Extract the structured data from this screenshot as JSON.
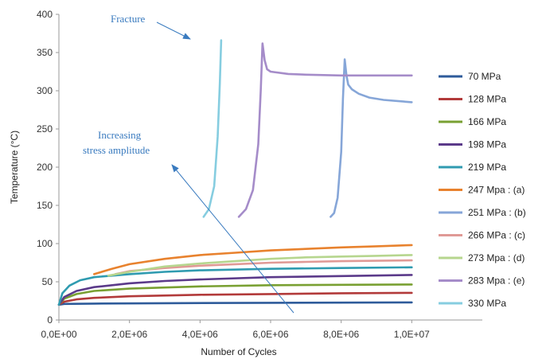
{
  "chart_data": {
    "type": "line",
    "xlabel": "Number of Cycles",
    "ylabel": "Temperature (°C)",
    "xlim": [
      0,
      12000000
    ],
    "ylim": [
      0,
      400
    ],
    "x_ticks": [
      0,
      2000000,
      4000000,
      6000000,
      8000000,
      10000000
    ],
    "x_tick_labels": [
      "0,0E+00",
      "2,0E+06",
      "4,0E+06",
      "6,0E+06",
      "8,0E+06",
      "1,0E+07"
    ],
    "y_ticks": [
      0,
      50,
      100,
      150,
      200,
      250,
      300,
      350,
      400
    ],
    "grid": false,
    "legend_position": "right",
    "annotations": [
      {
        "text": "Fracture"
      },
      {
        "text": "Increasing"
      },
      {
        "text": "stress amplitude"
      }
    ],
    "series": [
      {
        "name": "70 MPa",
        "color": "#2e5b9a",
        "points": [
          [
            0,
            20
          ],
          [
            150000,
            21
          ],
          [
            1000000,
            21.5
          ],
          [
            3000000,
            22
          ],
          [
            6000000,
            22.5
          ],
          [
            10000000,
            23
          ]
        ]
      },
      {
        "name": "128 MPa",
        "color": "#b23a3a",
        "points": [
          [
            0,
            20
          ],
          [
            150000,
            24
          ],
          [
            500000,
            27
          ],
          [
            1000000,
            29
          ],
          [
            2000000,
            31
          ],
          [
            4000000,
            33
          ],
          [
            6000000,
            34
          ],
          [
            8000000,
            35
          ],
          [
            10000000,
            35.5
          ]
        ]
      },
      {
        "name": "166 MPa",
        "color": "#79a032",
        "points": [
          [
            0,
            20
          ],
          [
            150000,
            28
          ],
          [
            500000,
            34
          ],
          [
            1000000,
            38
          ],
          [
            2000000,
            41
          ],
          [
            4000000,
            44
          ],
          [
            6000000,
            45.5
          ],
          [
            8000000,
            46
          ],
          [
            10000000,
            46.5
          ]
        ]
      },
      {
        "name": "198 MPa",
        "color": "#5b3a8a",
        "points": [
          [
            0,
            20
          ],
          [
            150000,
            30
          ],
          [
            500000,
            38
          ],
          [
            1000000,
            43
          ],
          [
            2000000,
            48
          ],
          [
            3000000,
            51
          ],
          [
            4000000,
            53
          ],
          [
            6000000,
            56
          ],
          [
            8000000,
            57.5
          ],
          [
            10000000,
            59
          ]
        ]
      },
      {
        "name": "219 MPa",
        "color": "#2f9bb0",
        "points": [
          [
            0,
            20
          ],
          [
            100000,
            35
          ],
          [
            300000,
            45
          ],
          [
            600000,
            52
          ],
          [
            1000000,
            56
          ],
          [
            2000000,
            60
          ],
          [
            3000000,
            63
          ],
          [
            4000000,
            65
          ],
          [
            6000000,
            67
          ],
          [
            8000000,
            68
          ],
          [
            10000000,
            69
          ]
        ]
      },
      {
        "name": "247 Mpa : (a)",
        "color": "#e8822e",
        "points": [
          [
            1000000,
            60
          ],
          [
            1500000,
            67
          ],
          [
            2000000,
            73
          ],
          [
            3000000,
            80
          ],
          [
            4000000,
            85
          ],
          [
            5000000,
            88
          ],
          [
            6000000,
            91
          ],
          [
            7000000,
            93
          ],
          [
            8000000,
            95
          ],
          [
            9000000,
            96.5
          ],
          [
            10000000,
            98
          ]
        ]
      },
      {
        "name": "251 MPa : (b)",
        "color": "#86a6d8",
        "points": [
          [
            7700000,
            135
          ],
          [
            7800000,
            140
          ],
          [
            7900000,
            160
          ],
          [
            8000000,
            220
          ],
          [
            8050000,
            290
          ],
          [
            8100000,
            341
          ],
          [
            8150000,
            320
          ],
          [
            8200000,
            308
          ],
          [
            8300000,
            302
          ],
          [
            8500000,
            296
          ],
          [
            8800000,
            291
          ],
          [
            9200000,
            288
          ],
          [
            10000000,
            285
          ]
        ]
      },
      {
        "name": "266 MPa : (c)",
        "color": "#e09a96",
        "points": [
          [
            1600000,
            60
          ],
          [
            2000000,
            64
          ],
          [
            3000000,
            68
          ],
          [
            4000000,
            71
          ],
          [
            5000000,
            73
          ],
          [
            6000000,
            75
          ],
          [
            7000000,
            76
          ],
          [
            8000000,
            77
          ],
          [
            9000000,
            77.5
          ],
          [
            10000000,
            78
          ]
        ]
      },
      {
        "name": "273 Mpa : (d)",
        "color": "#b6d68e",
        "points": [
          [
            1400000,
            58
          ],
          [
            2000000,
            63
          ],
          [
            3000000,
            70
          ],
          [
            4000000,
            74
          ],
          [
            5000000,
            77
          ],
          [
            6000000,
            80
          ],
          [
            7000000,
            82
          ],
          [
            8000000,
            83
          ],
          [
            9000000,
            84
          ],
          [
            10000000,
            85
          ]
        ]
      },
      {
        "name": "283 Mpa : (e)",
        "color": "#a58cc9",
        "points": [
          [
            5100000,
            135
          ],
          [
            5300000,
            145
          ],
          [
            5500000,
            170
          ],
          [
            5650000,
            230
          ],
          [
            5720000,
            300
          ],
          [
            5770000,
            362
          ],
          [
            5830000,
            340
          ],
          [
            5900000,
            328
          ],
          [
            6000000,
            325
          ],
          [
            6500000,
            322
          ],
          [
            7000000,
            321
          ],
          [
            8000000,
            320
          ],
          [
            9000000,
            320
          ],
          [
            10000000,
            320
          ]
        ]
      },
      {
        "name": "330 MPa",
        "color": "#86cde0",
        "points": [
          [
            4100000,
            135
          ],
          [
            4250000,
            145
          ],
          [
            4400000,
            175
          ],
          [
            4500000,
            240
          ],
          [
            4560000,
            310
          ],
          [
            4600000,
            366
          ]
        ]
      }
    ]
  }
}
